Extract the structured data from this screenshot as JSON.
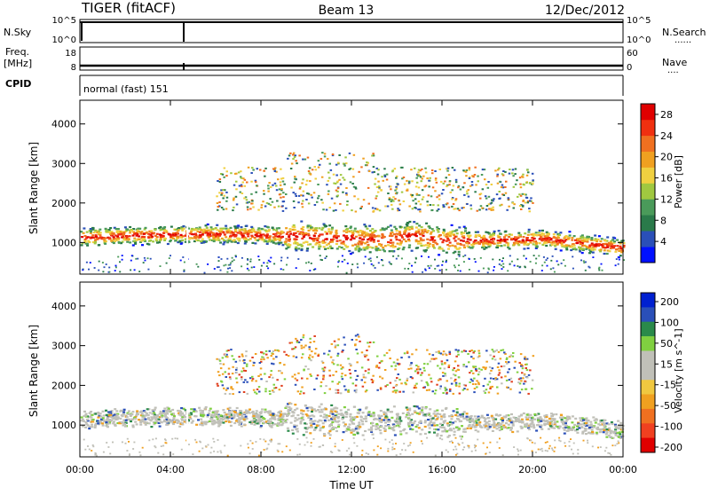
{
  "header": {
    "station": "TIGER (fitACF)",
    "beam": "Beam 13",
    "date": "12/Dec/2012"
  },
  "labels": {
    "nsky": "N.Sky",
    "nsearch": "N.Search",
    "freq_top": "Freq.",
    "freq_unit": "[MHz]",
    "nave": "Nave",
    "cpid": "CPID",
    "cpid_value": "normal (fast) 151",
    "dots": "......",
    "dots_short": "...."
  },
  "strip_ticks": {
    "nsky_left": [
      "10^5",
      "10^0"
    ],
    "nsky_right": [
      "10^5",
      "10^0"
    ],
    "freq_left": [
      "18",
      "8"
    ],
    "nave_right": [
      "60",
      "0"
    ]
  },
  "colors": {
    "power_scale": [
      "#0010ff",
      "#2a4fb8",
      "#2a7a4a",
      "#4a9a5a",
      "#a0c840",
      "#f0d040",
      "#f0a020",
      "#f07020",
      "#f03010",
      "#e00000"
    ],
    "velocity_scale": [
      "#e00000",
      "#f04020",
      "#f07020",
      "#f0a020",
      "#f0c840",
      "#c0c0b8",
      "#c0c0b8",
      "#80d040",
      "#2a8a4a",
      "#2a4fb8",
      "#0020d0"
    ]
  },
  "chart_data": [
    {
      "type": "heatmap",
      "name": "power",
      "x_ticks": [
        "00:00",
        "04:00",
        "08:00",
        "12:00",
        "16:00",
        "20:00",
        "00:00"
      ],
      "xlim_hours": [
        0,
        24
      ],
      "ylabel": "Slant Range [km]",
      "y_ticks": [
        1000,
        2000,
        3000,
        4000
      ],
      "ylim": [
        200,
        4600
      ],
      "colorbar": {
        "label": "Power [dB]",
        "ticks": [
          4,
          8,
          12,
          16,
          20,
          24,
          28
        ],
        "range": [
          0,
          30
        ]
      }
    },
    {
      "type": "heatmap",
      "name": "velocity",
      "x_ticks": [
        "00:00",
        "04:00",
        "08:00",
        "12:00",
        "16:00",
        "20:00",
        "00:00"
      ],
      "xlim_hours": [
        0,
        24
      ],
      "xlabel": "Time UT",
      "ylabel": "Slant Range [km]",
      "y_ticks": [
        1000,
        2000,
        3000,
        4000
      ],
      "ylim": [
        200,
        4600
      ],
      "colorbar": {
        "label": "Velocity [m s^-1]",
        "ticks": [
          200,
          100,
          50,
          15,
          -15,
          -50,
          -100,
          -200
        ]
      }
    }
  ]
}
